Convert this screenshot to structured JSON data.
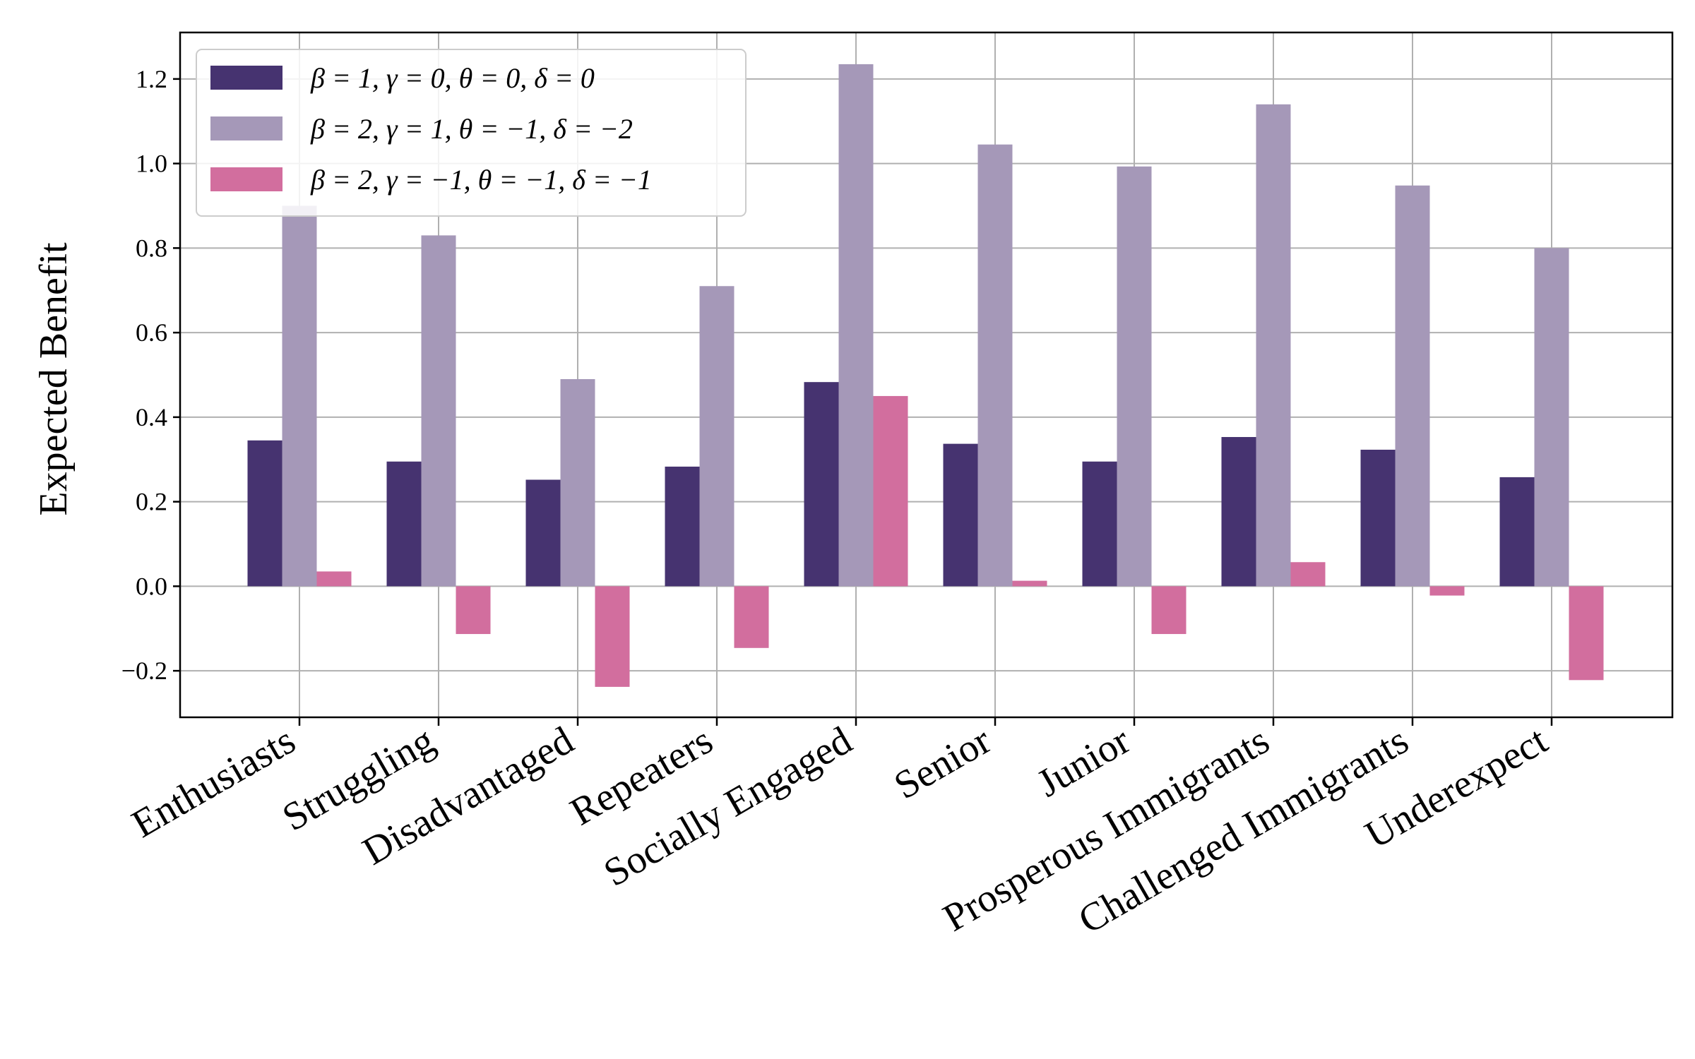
{
  "chart_data": {
    "type": "bar",
    "title": "",
    "xlabel": "",
    "ylabel": "Expected Benefit",
    "ylim": [
      -0.31,
      1.31
    ],
    "yticks": [
      -0.2,
      0.0,
      0.2,
      0.4,
      0.6,
      0.8,
      1.0,
      1.2
    ],
    "ytick_labels": [
      "−0.2",
      "0.0",
      "0.2",
      "0.4",
      "0.6",
      "0.8",
      "1.0",
      "1.2"
    ],
    "grid": true,
    "legend_position": "top-left",
    "categories": [
      "Enthusiasts",
      "Struggling",
      "Disadvantaged",
      "Repeaters",
      "Socially Engaged",
      "Senior",
      "Junior",
      "Prosperous Immigrants",
      "Challenged Immigrants",
      "Underexpect"
    ],
    "series": [
      {
        "name": "β = 1, γ = 0, θ = 0, δ = 0",
        "color": "#463370",
        "values": [
          0.345,
          0.295,
          0.252,
          0.283,
          0.483,
          0.337,
          0.295,
          0.353,
          0.323,
          0.258
        ]
      },
      {
        "name": "β = 2, γ = 1, θ = −1, δ = −2",
        "color": "#a598b8",
        "values": [
          0.9,
          0.83,
          0.49,
          0.71,
          1.235,
          1.045,
          0.993,
          1.14,
          0.948,
          0.8
        ]
      },
      {
        "name": "β = 2, γ = −1, θ = −1, δ = −1",
        "color": "#d26e9e",
        "values": [
          0.035,
          -0.113,
          -0.238,
          -0.146,
          0.45,
          0.013,
          -0.113,
          0.057,
          -0.022,
          -0.222
        ]
      }
    ]
  }
}
